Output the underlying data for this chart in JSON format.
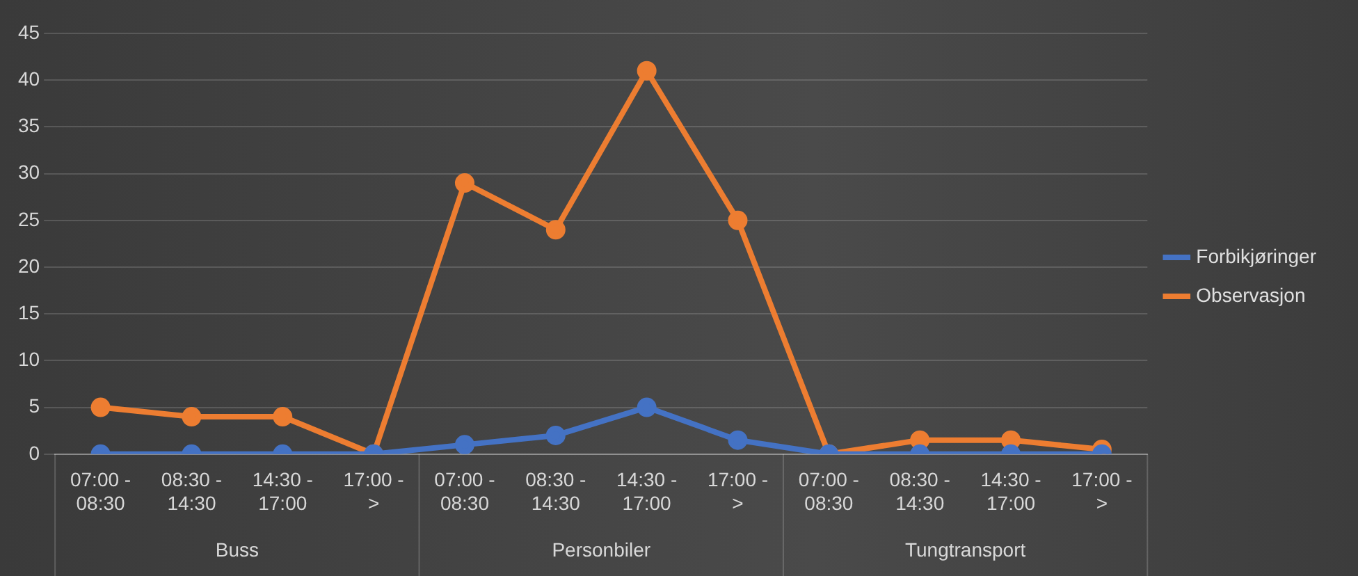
{
  "chart_data": {
    "type": "line",
    "categories": [
      "07:00 - 08:30",
      "08:30 - 14:30",
      "14:30 - 17:00",
      "17:00 - >",
      "07:00 - 08:30",
      "08:30 - 14:30",
      "14:30 - 17:00",
      "17:00 - >",
      "07:00 - 08:30",
      "08:30 - 14:30",
      "14:30 - 17:00",
      "17:00 - >"
    ],
    "series": [
      {
        "name": "Forbikjøringer",
        "color": "#4472c4",
        "values": [
          0,
          0,
          0,
          0,
          1,
          2,
          5,
          1.5,
          0,
          0,
          0,
          0
        ]
      },
      {
        "name": "Observasjon",
        "color": "#ed7d31",
        "values": [
          5,
          4,
          4,
          0,
          29,
          24,
          41,
          25,
          0,
          1.5,
          1.5,
          0.5
        ]
      }
    ],
    "annotations": [
      "Buss",
      "Personbiler",
      "Tungtransport"
    ],
    "ylim": [
      0,
      45
    ],
    "yticks": [
      0,
      5,
      10,
      15,
      20,
      25,
      30,
      35,
      40,
      45
    ],
    "grid": "y",
    "legend": "right",
    "marker": "circle",
    "line_style": "solid"
  }
}
